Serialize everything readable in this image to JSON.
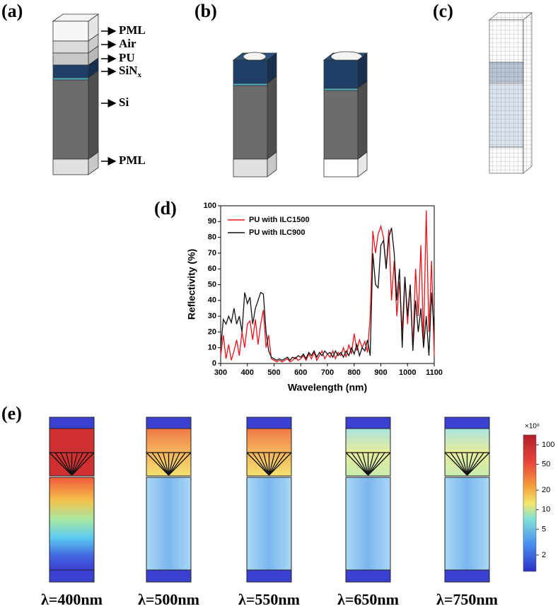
{
  "panel_labels": [
    "(a)",
    "(b)",
    "(c)",
    "(d)",
    "(e)"
  ],
  "layer_labels": [
    "PML",
    "Air",
    "PU",
    {
      "text": "SiN",
      "subscript": "x"
    },
    "Si",
    "PML"
  ],
  "chart_data": {
    "type": "line",
    "xlabel": "Wavelength (nm)",
    "ylabel": "Reflectivity (%)",
    "x": [
      300,
      310,
      320,
      330,
      340,
      350,
      360,
      370,
      380,
      390,
      400,
      410,
      420,
      430,
      440,
      450,
      460,
      470,
      480,
      490,
      500,
      510,
      520,
      530,
      540,
      550,
      560,
      570,
      580,
      590,
      600,
      610,
      620,
      630,
      640,
      650,
      660,
      670,
      680,
      690,
      700,
      710,
      720,
      730,
      740,
      750,
      760,
      770,
      780,
      790,
      800,
      810,
      820,
      830,
      840,
      850,
      860,
      870,
      880,
      890,
      900,
      910,
      920,
      930,
      940,
      950,
      960,
      970,
      980,
      990,
      1000,
      1010,
      1020,
      1030,
      1040,
      1050,
      1060,
      1070,
      1080,
      1090,
      1100
    ],
    "series": [
      {
        "name": "PU with ILC1500",
        "color": "#e8141a",
        "values": [
          5,
          18,
          3,
          12,
          2,
          8,
          15,
          5,
          20,
          10,
          25,
          27,
          15,
          28,
          12,
          25,
          34,
          10,
          18,
          3,
          2,
          1,
          2,
          1,
          2,
          3,
          1,
          2,
          4,
          2,
          3,
          5,
          2,
          6,
          3,
          7,
          2,
          5,
          8,
          3,
          6,
          4,
          8,
          3,
          7,
          5,
          10,
          4,
          12,
          6,
          19,
          8,
          15,
          10,
          14,
          7,
          30,
          84,
          70,
          82,
          87,
          80,
          60,
          85,
          40,
          65,
          30,
          52,
          20,
          55,
          25,
          50,
          10,
          60,
          30,
          75,
          15,
          97,
          20,
          65,
          5
        ]
      },
      {
        "name": "PU with ILC900",
        "color": "#111111",
        "values": [
          10,
          28,
          25,
          30,
          26,
          35,
          25,
          30,
          20,
          45,
          38,
          42,
          25,
          35,
          40,
          45,
          44,
          20,
          8,
          4,
          3,
          2,
          3,
          2,
          3,
          4,
          2,
          4,
          3,
          5,
          4,
          6,
          3,
          7,
          5,
          8,
          4,
          7,
          5,
          8,
          6,
          7,
          4,
          8,
          5,
          7,
          4,
          8,
          5,
          10,
          6,
          12,
          5,
          10,
          8,
          15,
          5,
          70,
          50,
          48,
          75,
          78,
          60,
          80,
          86,
          70,
          40,
          60,
          10,
          55,
          30,
          50,
          8,
          40,
          20,
          35,
          10,
          30,
          5,
          45,
          20
        ]
      }
    ],
    "xlim": [
      300,
      1100
    ],
    "xticks": [
      300,
      400,
      500,
      600,
      700,
      800,
      900,
      1000,
      1100
    ],
    "ylim": [
      0,
      100
    ],
    "yticks": [
      0,
      10,
      20,
      30,
      40,
      50,
      60,
      70,
      80,
      90,
      100
    ],
    "legend": "upper-left"
  },
  "field_maps": {
    "wavelength_labels": [
      "λ=400nm",
      "λ=500nm",
      "λ=550nm",
      "λ=650nm",
      "λ=750nm"
    ],
    "colorbar": {
      "unit_label": "×10⁶",
      "scale": "log",
      "lim": [
        1.12,
        142
      ],
      "ticks": [
        100,
        50,
        20,
        10,
        5,
        2
      ]
    }
  }
}
